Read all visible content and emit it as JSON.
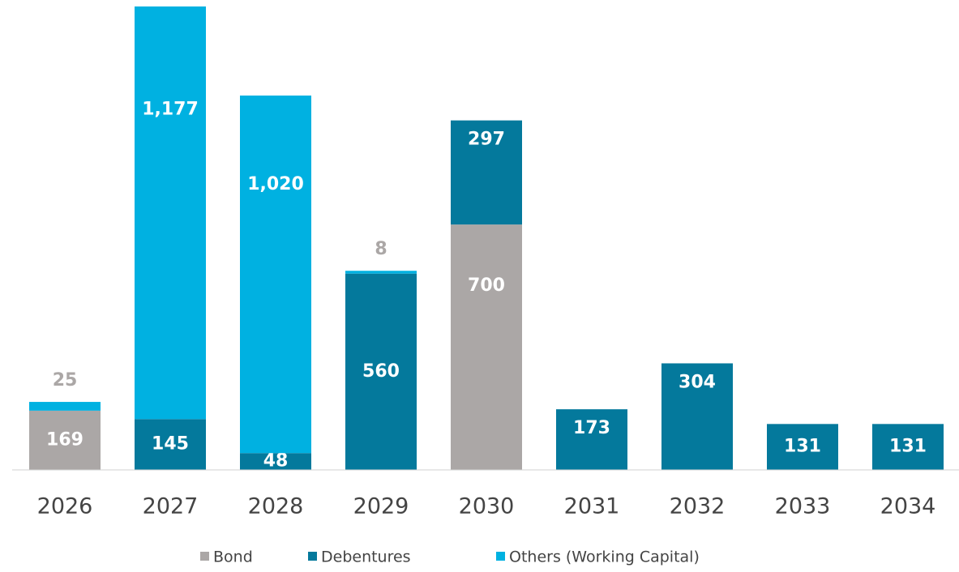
{
  "chart_data": {
    "type": "bar",
    "stacked": true,
    "categories": [
      "2026",
      "2027",
      "2028",
      "2029",
      "2030",
      "2031",
      "2032",
      "2033",
      "2034"
    ],
    "series": [
      {
        "name": "Bond",
        "color": "#aba7a6",
        "values": [
          169,
          null,
          null,
          null,
          700,
          null,
          null,
          null,
          null
        ]
      },
      {
        "name": "Debentures",
        "color": "#04799c",
        "values": [
          null,
          145,
          48,
          560,
          297,
          173,
          304,
          131,
          131
        ]
      },
      {
        "name": "Others (Working Capital)",
        "color": "#00b1e1",
        "values": [
          25,
          1177,
          1020,
          8,
          null,
          null,
          null,
          null,
          null
        ],
        "value_labels": [
          "25",
          "1,177",
          "1,020",
          "8",
          null,
          null,
          null,
          null,
          null
        ]
      }
    ]
  }
}
